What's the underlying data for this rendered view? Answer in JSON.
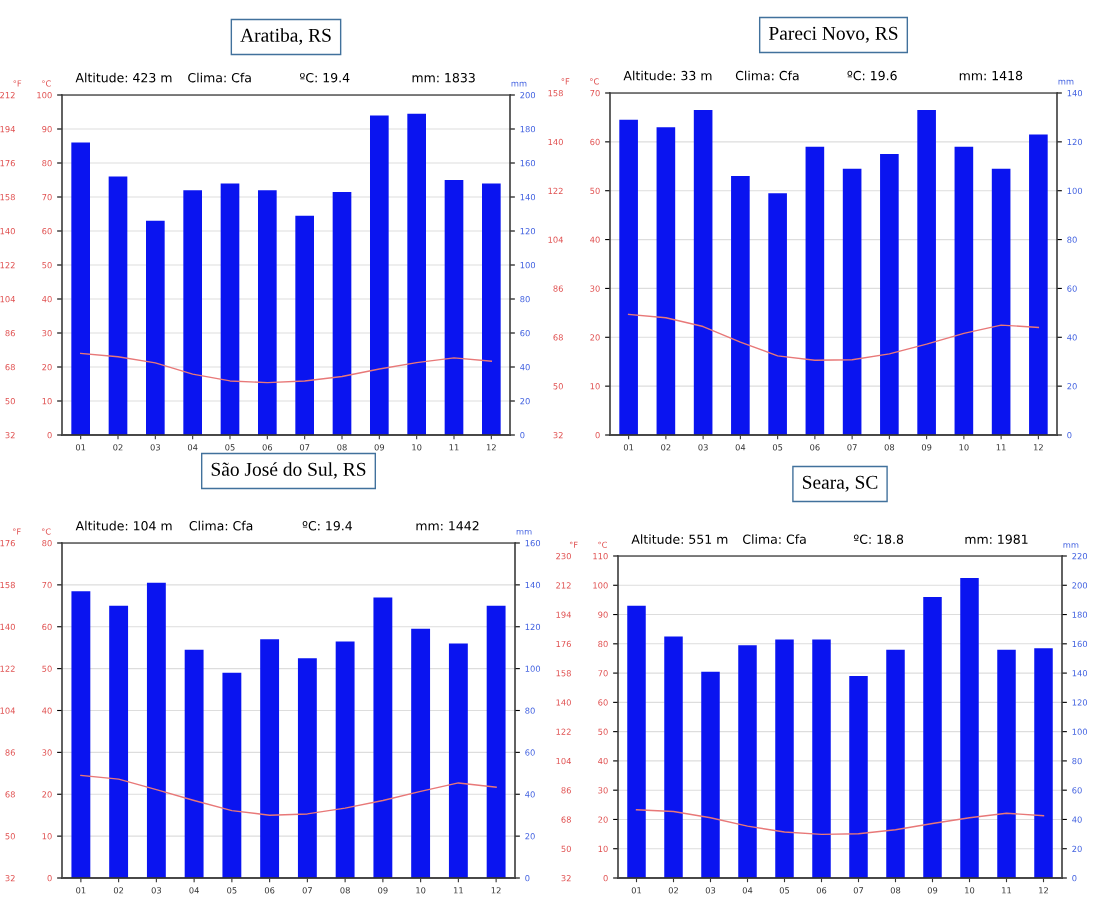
{
  "chart_data": [
    {
      "type": "bar",
      "title": "Aratiba, RS",
      "ylabel": "°C",
      "y2label": "mm",
      "y3label": "°F",
      "grid": "y",
      "annotations": [
        "Altitude: 423 m",
        "Clima: Cfa",
        "ºC: 19.4",
        "mm: 1833"
      ],
      "categories": [
        "01",
        "02",
        "03",
        "04",
        "05",
        "06",
        "07",
        "08",
        "09",
        "10",
        "11",
        "12"
      ],
      "series": [
        {
          "type": "bar",
          "axis": "y2",
          "color": "#0a14f0",
          "values": [
            172,
            152,
            126,
            144,
            148,
            144,
            129,
            143,
            188,
            189,
            150,
            148
          ]
        },
        {
          "type": "line",
          "axis": "y",
          "color": "#e87878",
          "values": [
            24.0,
            23.0,
            21.2,
            17.9,
            15.9,
            15.4,
            15.9,
            17.2,
            19.4,
            21.3,
            22.7,
            21.7
          ]
        }
      ],
      "ylim": [
        0,
        100
      ],
      "yticks": [
        0,
        10,
        20,
        30,
        40,
        50,
        60,
        70,
        80,
        90,
        100
      ],
      "y2lim": [
        0,
        200
      ],
      "y2ticks": [
        0,
        20,
        40,
        60,
        80,
        100,
        120,
        140,
        160,
        180,
        200
      ],
      "y3lim": [
        32,
        212
      ],
      "y3ticks": [
        32,
        50,
        68,
        86,
        104,
        122,
        140,
        158,
        176,
        194,
        212
      ]
    },
    {
      "type": "bar",
      "title": "Pareci Novo, RS",
      "ylabel": "°C",
      "y2label": "mm",
      "y3label": "°F",
      "grid": "y",
      "annotations": [
        "Altitude: 33 m",
        "Clima: Cfa",
        "ºC: 19.6",
        "mm: 1418"
      ],
      "categories": [
        "01",
        "02",
        "03",
        "04",
        "05",
        "06",
        "07",
        "08",
        "09",
        "10",
        "11",
        "12"
      ],
      "series": [
        {
          "type": "bar",
          "axis": "y2",
          "color": "#0a14f0",
          "values": [
            129,
            126,
            133,
            106,
            99,
            118,
            109,
            115,
            133,
            118,
            109,
            123
          ]
        },
        {
          "type": "line",
          "axis": "y",
          "color": "#e87878",
          "values": [
            24.7,
            24.0,
            22.2,
            19.0,
            16.2,
            15.3,
            15.4,
            16.6,
            18.6,
            20.8,
            22.5,
            22.0
          ]
        }
      ],
      "ylim": [
        0,
        70
      ],
      "yticks": [
        0,
        10,
        20,
        30,
        40,
        50,
        60,
        70
      ],
      "y2lim": [
        0,
        140
      ],
      "y2ticks": [
        0,
        20,
        40,
        60,
        80,
        100,
        120,
        140
      ],
      "y3lim": [
        32,
        158
      ],
      "y3ticks": [
        32,
        50,
        68,
        86,
        104,
        122,
        140,
        158
      ]
    },
    {
      "type": "bar",
      "title": "São José do Sul, RS",
      "ylabel": "°C",
      "y2label": "mm",
      "y3label": "°F",
      "grid": "y",
      "annotations": [
        "Altitude: 104 m",
        "Clima: Cfa",
        "ºC: 19.4",
        "mm: 1442"
      ],
      "categories": [
        "01",
        "02",
        "03",
        "04",
        "05",
        "06",
        "07",
        "08",
        "09",
        "10",
        "11",
        "12"
      ],
      "series": [
        {
          "type": "bar",
          "axis": "y2",
          "color": "#0a14f0",
          "values": [
            137,
            130,
            141,
            109,
            98,
            114,
            105,
            113,
            134,
            119,
            112,
            130
          ]
        },
        {
          "type": "line",
          "axis": "y",
          "color": "#e87878",
          "values": [
            24.5,
            23.6,
            21.1,
            18.5,
            16.1,
            15.0,
            15.3,
            16.7,
            18.5,
            20.7,
            22.7,
            21.7
          ]
        }
      ],
      "ylim": [
        0,
        80
      ],
      "yticks": [
        0,
        10,
        20,
        30,
        40,
        50,
        60,
        70,
        80
      ],
      "y2lim": [
        0,
        160
      ],
      "y2ticks": [
        0,
        20,
        40,
        60,
        80,
        100,
        120,
        140,
        160
      ],
      "y3lim": [
        32,
        176
      ],
      "y3ticks": [
        32,
        50,
        68,
        86,
        104,
        122,
        140,
        158,
        176
      ]
    },
    {
      "type": "bar",
      "title": "Seara, SC",
      "ylabel": "°C",
      "y2label": "mm",
      "y3label": "°F",
      "grid": "y",
      "annotations": [
        "Altitude: 551 m",
        "Clima: Cfa",
        "ºC: 18.8",
        "mm: 1981"
      ],
      "categories": [
        "01",
        "02",
        "03",
        "04",
        "05",
        "06",
        "07",
        "08",
        "09",
        "10",
        "11",
        "12"
      ],
      "series": [
        {
          "type": "bar",
          "axis": "y2",
          "color": "#0a14f0",
          "values": [
            186,
            165,
            141,
            159,
            163,
            163,
            138,
            156,
            192,
            205,
            156,
            157
          ]
        },
        {
          "type": "line",
          "axis": "y",
          "color": "#e87878",
          "values": [
            23.3,
            22.7,
            20.6,
            17.7,
            15.7,
            14.9,
            15.1,
            16.5,
            18.6,
            20.6,
            22.1,
            21.3
          ]
        }
      ],
      "ylim": [
        0,
        110
      ],
      "yticks": [
        0,
        10,
        20,
        30,
        40,
        50,
        60,
        70,
        80,
        90,
        100,
        110
      ],
      "y2lim": [
        0,
        220
      ],
      "y2ticks": [
        0,
        20,
        40,
        60,
        80,
        100,
        120,
        140,
        160,
        180,
        200,
        220
      ],
      "y3lim": [
        32,
        230
      ],
      "y3ticks": [
        32,
        50,
        68,
        86,
        104,
        122,
        140,
        158,
        176,
        194,
        212,
        230
      ]
    }
  ]
}
